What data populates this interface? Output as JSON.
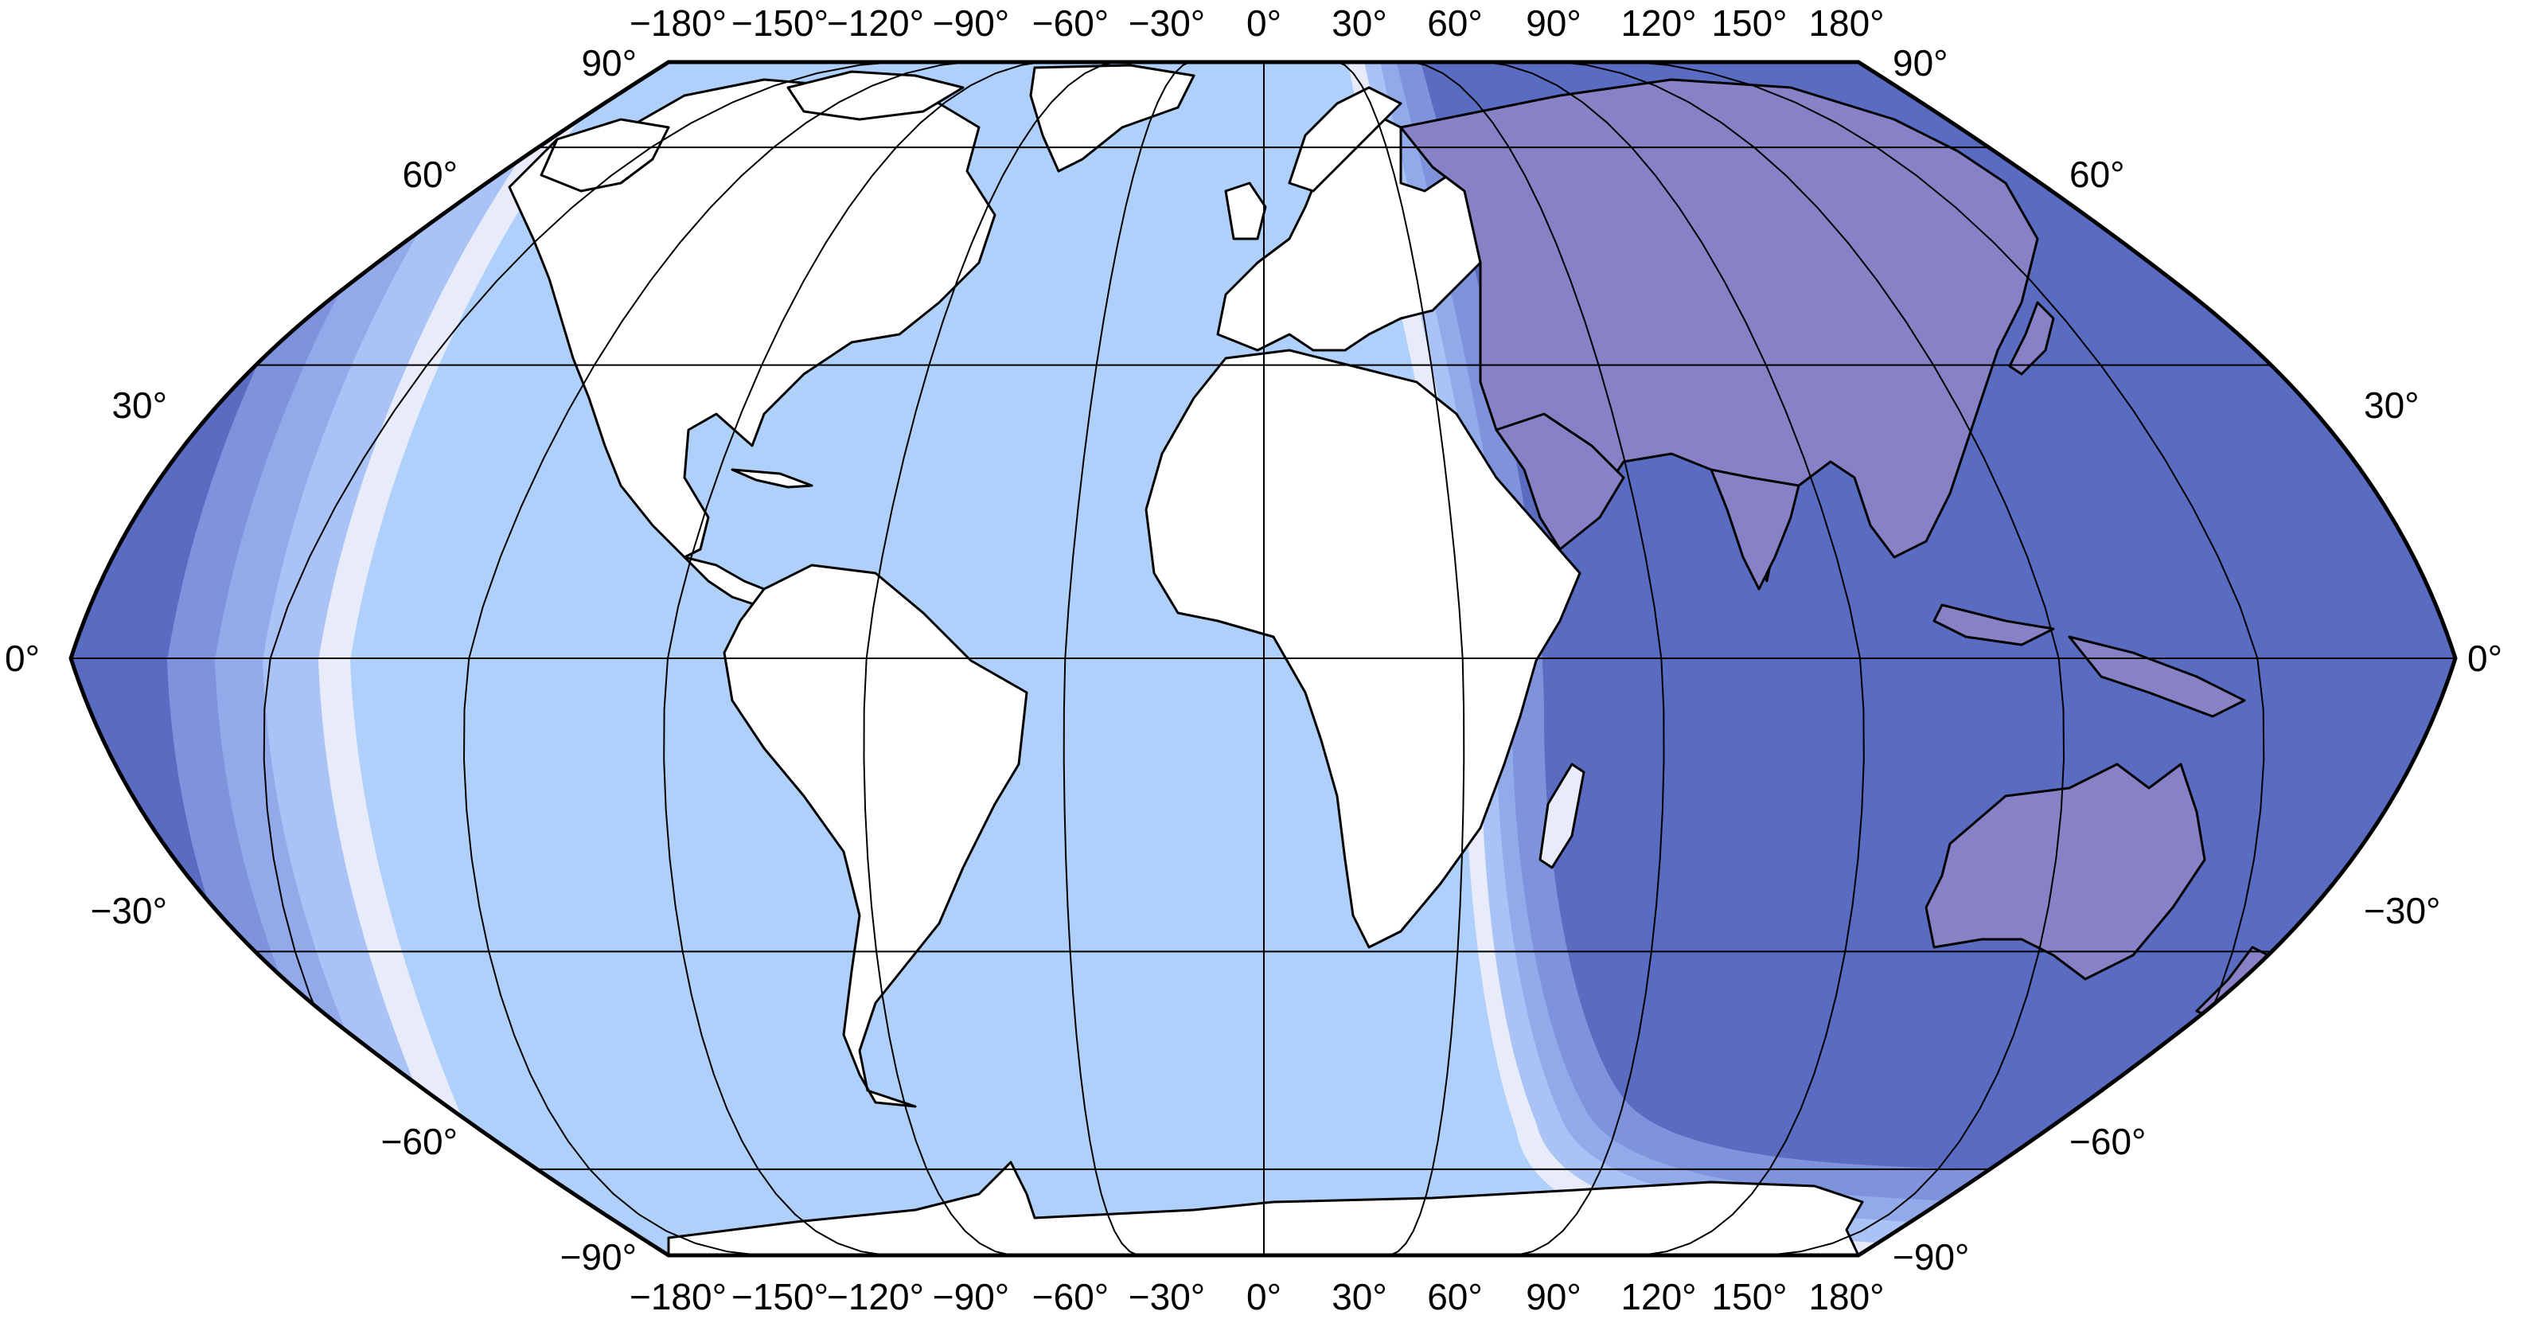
{
  "map": {
    "projection": "Eckert VI",
    "colors": {
      "ocean_day": "#afd0fb",
      "ocean_night": "#5a6bc2",
      "twilight_civil": "#8ea7e6",
      "twilight_nautical": "#a7bff4",
      "twilight_edge": "#eceef9",
      "land": "#ffffff",
      "land_night": "#8781c6",
      "border": "#000000",
      "country_border": "#a8a8a8",
      "graticule": "#000000"
    },
    "graticule": {
      "longitudes_deg": [
        -180,
        -150,
        -120,
        -90,
        -60,
        -30,
        0,
        30,
        60,
        90,
        120,
        150,
        180
      ],
      "latitudes_deg": [
        -90,
        -60,
        -30,
        0,
        30,
        60,
        90
      ]
    },
    "top_labels": [
      "−180°",
      "−150°",
      "−120°",
      "−90°",
      "−60°",
      "−30°",
      "0°",
      "30°",
      "60°",
      "90°",
      "120°",
      "150°",
      "180°"
    ],
    "bottom_labels": [
      "−180°",
      "−150°",
      "−120°",
      "−90°",
      "−60°",
      "−30°",
      "0°",
      "30°",
      "60°",
      "90°",
      "120°",
      "150°",
      "180°"
    ],
    "left_labels": {
      "lat90": "90°",
      "lat60": "60°",
      "lat30": "30°",
      "lat0": "0°",
      "latm30": "−30°",
      "latm60": "−60°",
      "latm90": "−90°"
    },
    "right_labels": {
      "lat90": "90°",
      "lat60": "60°",
      "lat30": "30°",
      "lat0": "0°",
      "latm30": "−30°",
      "latm60": "−60°",
      "latm90": "−90°"
    }
  }
}
